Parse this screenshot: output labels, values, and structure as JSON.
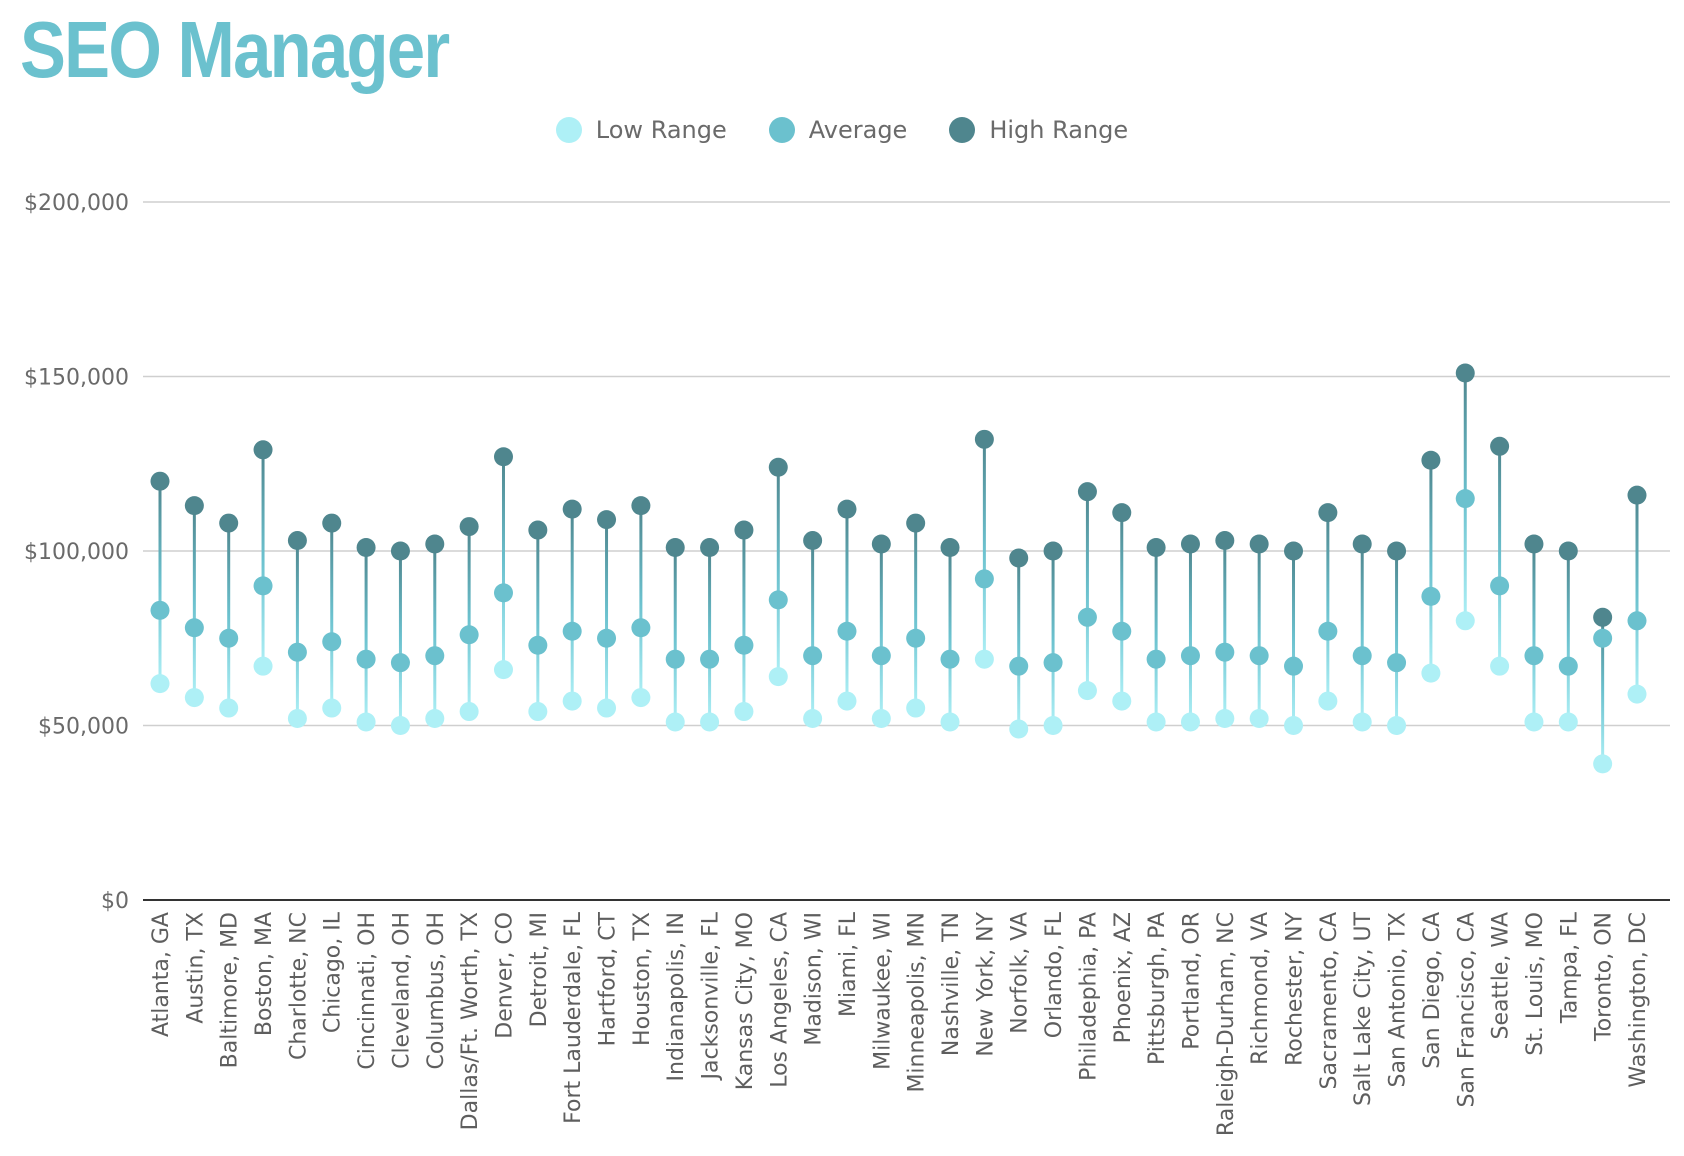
{
  "chart_data": {
    "type": "scatter",
    "title": "SEO Manager",
    "xlabel": "",
    "ylabel": "",
    "ylim": [
      0,
      200000
    ],
    "ytick_values": [
      0,
      50000,
      100000,
      150000,
      200000
    ],
    "ytick_labels": [
      "$0",
      "$50,000",
      "$100,000",
      "$150,000",
      "$200,000"
    ],
    "grid": true,
    "legend_position": "top-center",
    "categories": [
      "Atlanta, GA",
      "Austin, TX",
      "Baltimore, MD",
      "Boston, MA",
      "Charlotte, NC",
      "Chicago, IL",
      "Cincinnati, OH",
      "Cleveland, OH",
      "Columbus, OH",
      "Dallas/Ft. Worth, TX",
      "Denver, CO",
      "Detroit, MI",
      "Fort Lauderdale, FL",
      "Hartford, CT",
      "Houston, TX",
      "Indianapolis, IN",
      "Jacksonville, FL",
      "Kansas City, MO",
      "Los Angeles, CA",
      "Madison, WI",
      "Miami, FL",
      "Milwaukee, WI",
      "Minneapolis, MN",
      "Nashville, TN",
      "New York, NY",
      "Norfolk, VA",
      "Orlando, FL",
      "Philadephia, PA",
      "Phoenix, AZ",
      "Pittsburgh, PA",
      "Portland, OR",
      "Raleigh-Durham, NC",
      "Richmond, VA",
      "Rochester, NY",
      "Sacramento, CA",
      "Salt Lake City, UT",
      "San Antonio, TX",
      "San Diego, CA",
      "San Francisco, CA",
      "Seattle, WA",
      "St. Louis, MO",
      "Tampa, FL",
      "Toronto, ON",
      "Washington, DC"
    ],
    "series": [
      {
        "name": "Low Range",
        "color": "#aef0f6",
        "values": [
          62000,
          58000,
          55000,
          67000,
          52000,
          55000,
          51000,
          50000,
          52000,
          54000,
          66000,
          54000,
          57000,
          55000,
          58000,
          51000,
          51000,
          54000,
          64000,
          52000,
          57000,
          52000,
          55000,
          51000,
          69000,
          49000,
          50000,
          60000,
          57000,
          51000,
          51000,
          52000,
          52000,
          50000,
          57000,
          51000,
          50000,
          65000,
          80000,
          67000,
          51000,
          51000,
          39000,
          59000
        ]
      },
      {
        "name": "Average",
        "color": "#6bc1ce",
        "values": [
          83000,
          78000,
          75000,
          90000,
          71000,
          74000,
          69000,
          68000,
          70000,
          76000,
          88000,
          73000,
          77000,
          75000,
          78000,
          69000,
          69000,
          73000,
          86000,
          70000,
          77000,
          70000,
          75000,
          69000,
          92000,
          67000,
          68000,
          81000,
          77000,
          69000,
          70000,
          71000,
          70000,
          67000,
          77000,
          70000,
          68000,
          87000,
          115000,
          90000,
          70000,
          67000,
          75000,
          80000
        ]
      },
      {
        "name": "High Range",
        "color": "#4f868e",
        "values": [
          120000,
          113000,
          108000,
          129000,
          103000,
          108000,
          101000,
          100000,
          102000,
          107000,
          127000,
          106000,
          112000,
          109000,
          113000,
          101000,
          101000,
          106000,
          124000,
          103000,
          112000,
          102000,
          108000,
          101000,
          132000,
          98000,
          100000,
          117000,
          111000,
          101000,
          102000,
          103000,
          102000,
          100000,
          111000,
          102000,
          100000,
          126000,
          151000,
          130000,
          102000,
          100000,
          81000,
          116000
        ]
      }
    ]
  }
}
